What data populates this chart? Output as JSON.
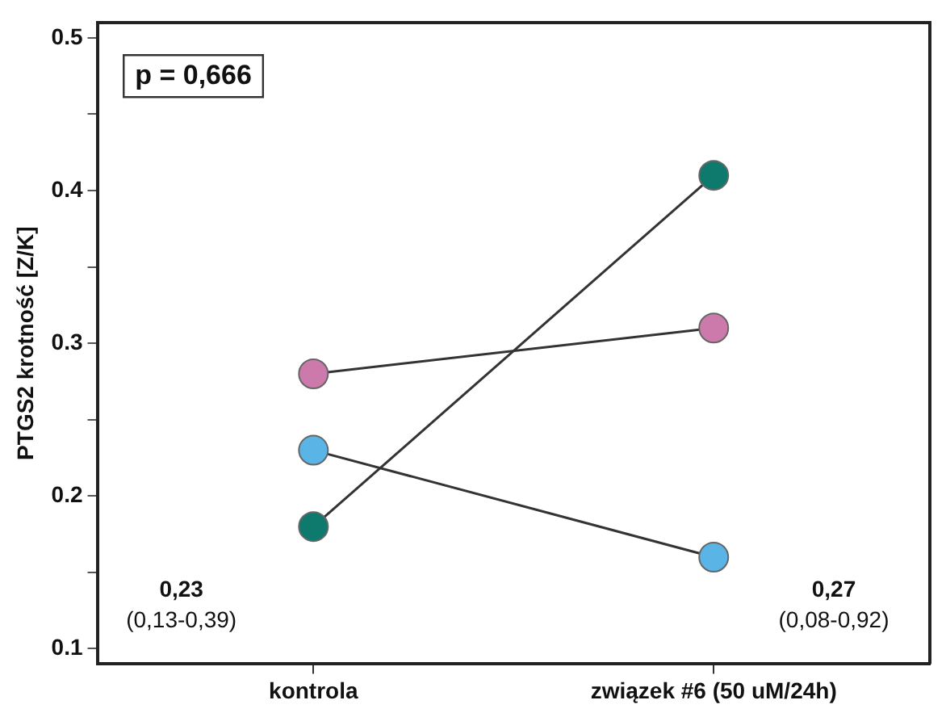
{
  "chart_data": {
    "type": "line",
    "ylabel": "PTGS2 krotność [Z/K]",
    "categories": [
      "kontrola",
      "związek #6 (50 uM/24h)"
    ],
    "series": [
      {
        "color": "#0e7a6e",
        "values": [
          0.18,
          0.41
        ]
      },
      {
        "color": "#cc7aab",
        "values": [
          0.28,
          0.31
        ]
      },
      {
        "color": "#5ab4e5",
        "values": [
          0.23,
          0.16
        ]
      }
    ],
    "ylim": [
      0.09,
      0.51
    ],
    "yticks": [
      0.1,
      {
        "value": 0.15,
        "label": null
      },
      0.2,
      {
        "value": 0.25,
        "label": null
      },
      0.3,
      {
        "value": 0.35,
        "label": null
      },
      0.4,
      {
        "value": 0.45,
        "label": null
      },
      0.5
    ],
    "annotations": [
      "p = 0,666",
      "0,23",
      "(0,13-0,39)",
      "0,27",
      "(0,08-0,92)"
    ],
    "marker": "circle",
    "line_style": "solid",
    "grid": false,
    "legend": false
  }
}
